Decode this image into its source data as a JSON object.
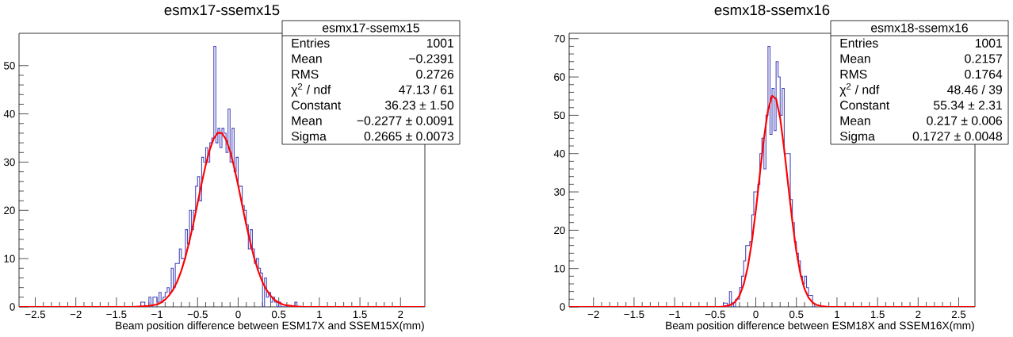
{
  "chart_data": [
    {
      "type": "histogram",
      "title": "esmx17-ssemx15",
      "xlabel": "Beam position difference between ESM17X and SSEM15X(mm)",
      "series": [
        {
          "type": "histogram",
          "color": "#4444bb",
          "bins": [
            -1.225,
            -1.2,
            -1.175,
            -1.15,
            -1.125,
            -1.1,
            -1.075,
            -1.05,
            -1.025,
            -1,
            -0.975,
            -0.95,
            -0.925,
            -0.9,
            -0.875,
            -0.85,
            -0.825,
            -0.8,
            -0.775,
            -0.75,
            -0.725,
            -0.7,
            -0.675,
            -0.65,
            -0.625,
            -0.6,
            -0.575,
            -0.55,
            -0.525,
            -0.5,
            -0.475,
            -0.45,
            -0.425,
            -0.4,
            -0.375,
            -0.35,
            -0.325,
            -0.3,
            -0.275,
            -0.25,
            -0.225,
            -0.2,
            -0.175,
            -0.15,
            -0.125,
            -0.1,
            -0.075,
            -0.05,
            -0.025,
            0,
            0.025,
            0.05,
            0.075,
            0.1,
            0.125,
            0.15,
            0.175,
            0.2,
            0.225,
            0.25,
            0.275,
            0.3,
            0.325,
            0.35,
            0.375,
            0.4,
            0.425,
            0.45,
            0.475,
            0.5,
            0.525,
            0.55,
            0.575,
            0.6,
            0.625,
            0.65,
            0.675,
            0.7,
            0.725,
            0.75
          ],
          "values": [
            0,
            1,
            1,
            0,
            0,
            2,
            0,
            2,
            2,
            1,
            3,
            1,
            2,
            3,
            4,
            3,
            8,
            4,
            9,
            9,
            12,
            10,
            10,
            16,
            13,
            20,
            16,
            20,
            25,
            27,
            22,
            31,
            30,
            33,
            30,
            34,
            35,
            54,
            34,
            37,
            33,
            37,
            36,
            32,
            41,
            30,
            37,
            28,
            31,
            25,
            25,
            21,
            20,
            17,
            12,
            16,
            12,
            9,
            10,
            8,
            7,
            0,
            6,
            2,
            3,
            1,
            2,
            1,
            0,
            1,
            0,
            0,
            0,
            0,
            0,
            0,
            0,
            1,
            0
          ]
        },
        {
          "type": "line",
          "color": "#ff0000",
          "x": [
            -2.7,
            -1.3,
            -1.2,
            -1.1,
            -1.0,
            -0.95,
            -0.9,
            -0.85,
            -0.8,
            -0.75,
            -0.7,
            -0.65,
            -0.6,
            -0.55,
            -0.5,
            -0.45,
            -0.4,
            -0.35,
            -0.3,
            -0.25,
            -0.2,
            -0.15,
            -0.1,
            -0.05,
            0,
            0.05,
            0.1,
            0.15,
            0.2,
            0.25,
            0.3,
            0.35,
            0.4,
            0.45,
            0.5,
            0.55,
            0.6,
            0.7,
            0.8,
            2.3
          ],
          "values": [
            0,
            0,
            0.1,
            0.2,
            0.5,
            0.9,
            1.5,
            2.4,
            3.6,
            5.3,
            7.5,
            10.3,
            13.7,
            17.4,
            21.5,
            25.6,
            29.4,
            32.6,
            34.9,
            36.1,
            36.0,
            34.7,
            32.3,
            29.0,
            25.2,
            21.0,
            17.0,
            13.3,
            10.0,
            7.3,
            5.1,
            3.5,
            2.3,
            1.4,
            0.9,
            0.5,
            0.3,
            0.1,
            0,
            0
          ]
        }
      ],
      "xlim": [
        -2.7,
        2.3
      ],
      "ylim": [
        0,
        56.7
      ],
      "xticks": [
        {
          "value": -2.5,
          "label": "−2.5"
        },
        {
          "value": -2,
          "label": "−2"
        },
        {
          "value": -1.5,
          "label": "−1.5"
        },
        {
          "value": -1,
          "label": "−1"
        },
        {
          "value": -0.5,
          "label": "−0.5"
        },
        0,
        0.5,
        1,
        1.5,
        2
      ],
      "yticks": [
        0,
        10,
        20,
        30,
        40,
        50
      ],
      "annotations": [
        "esmx17-ssemx15",
        "Entries",
        "1001",
        "Mean",
        "−0.2391",
        "RMS",
        "0.2726",
        "χ$^{2}$ / ndf",
        "47.13 / 61",
        "Constant",
        "36.23 ± 1.50",
        "Mean",
        "−0.2277 ± 0.0091",
        "Sigma",
        "0.2665 ± 0.0073"
      ]
    },
    {
      "type": "histogram",
      "title": "esmx18-ssemx16",
      "xlabel": "Beam position difference between ESM18X and SSEM16X(mm)",
      "series": [
        {
          "type": "histogram",
          "color": "#4444bb",
          "bins": [
            -0.425,
            -0.4,
            -0.375,
            -0.35,
            -0.325,
            -0.3,
            -0.275,
            -0.25,
            -0.225,
            -0.2,
            -0.175,
            -0.15,
            -0.125,
            -0.1,
            -0.075,
            -0.05,
            -0.025,
            0,
            0.025,
            0.05,
            0.075,
            0.1,
            0.125,
            0.15,
            0.175,
            0.2,
            0.225,
            0.25,
            0.275,
            0.3,
            0.325,
            0.35,
            0.375,
            0.4,
            0.425,
            0.45,
            0.475,
            0.5,
            0.525,
            0.55,
            0.575,
            0.6,
            0.625,
            0.65,
            0.675,
            0.7,
            0.725,
            0.75
          ],
          "values": [
            0,
            1,
            1,
            0,
            4,
            1,
            0,
            2,
            2,
            5,
            8,
            12,
            16,
            16,
            17,
            24,
            30,
            30,
            32,
            40,
            44,
            36,
            50,
            68,
            45,
            57,
            46,
            64,
            60,
            50,
            57,
            40,
            40,
            40,
            28,
            22,
            17,
            14,
            12,
            8,
            6,
            8,
            5,
            3,
            3,
            1,
            0
          ]
        },
        {
          "type": "line",
          "color": "#ff0000",
          "x": [
            -2.3,
            -0.45,
            -0.4,
            -0.35,
            -0.3,
            -0.25,
            -0.2,
            -0.15,
            -0.1,
            -0.05,
            0,
            0.05,
            0.1,
            0.15,
            0.2,
            0.25,
            0.3,
            0.35,
            0.4,
            0.45,
            0.5,
            0.55,
            0.6,
            0.65,
            0.7,
            0.75,
            0.8,
            0.85,
            0.9,
            2.7
          ],
          "values": [
            0,
            0,
            0.1,
            0.3,
            0.6,
            1.4,
            3.0,
            5.8,
            10.3,
            16.8,
            25.1,
            34.7,
            44.0,
            51.3,
            55.1,
            54.3,
            49.3,
            41.1,
            31.6,
            22.3,
            14.4,
            8.6,
            4.7,
            2.4,
            1.1,
            0.5,
            0.2,
            0.1,
            0,
            0
          ]
        }
      ],
      "xlim": [
        -2.3,
        2.7
      ],
      "ylim": [
        0,
        71.4
      ],
      "xticks": [
        {
          "value": -2,
          "label": "−2"
        },
        {
          "value": -1.5,
          "label": "−1.5"
        },
        {
          "value": -1,
          "label": "−1"
        },
        {
          "value": -0.5,
          "label": "−0.5"
        },
        0,
        0.5,
        1,
        1.5,
        2,
        2.5
      ],
      "yticks": [
        0,
        10,
        20,
        30,
        40,
        50,
        60,
        70
      ],
      "annotations": [
        "esmx18-ssemx16",
        "Entries",
        "1001",
        "Mean",
        "0.2157",
        "RMS",
        "0.1764",
        "χ$^{2}$ / ndf",
        "48.46 / 39",
        "Constant",
        "55.34 ± 2.31",
        "Mean",
        "0.217 ± 0.006",
        "Sigma",
        "0.1727 ± 0.0048"
      ]
    }
  ]
}
